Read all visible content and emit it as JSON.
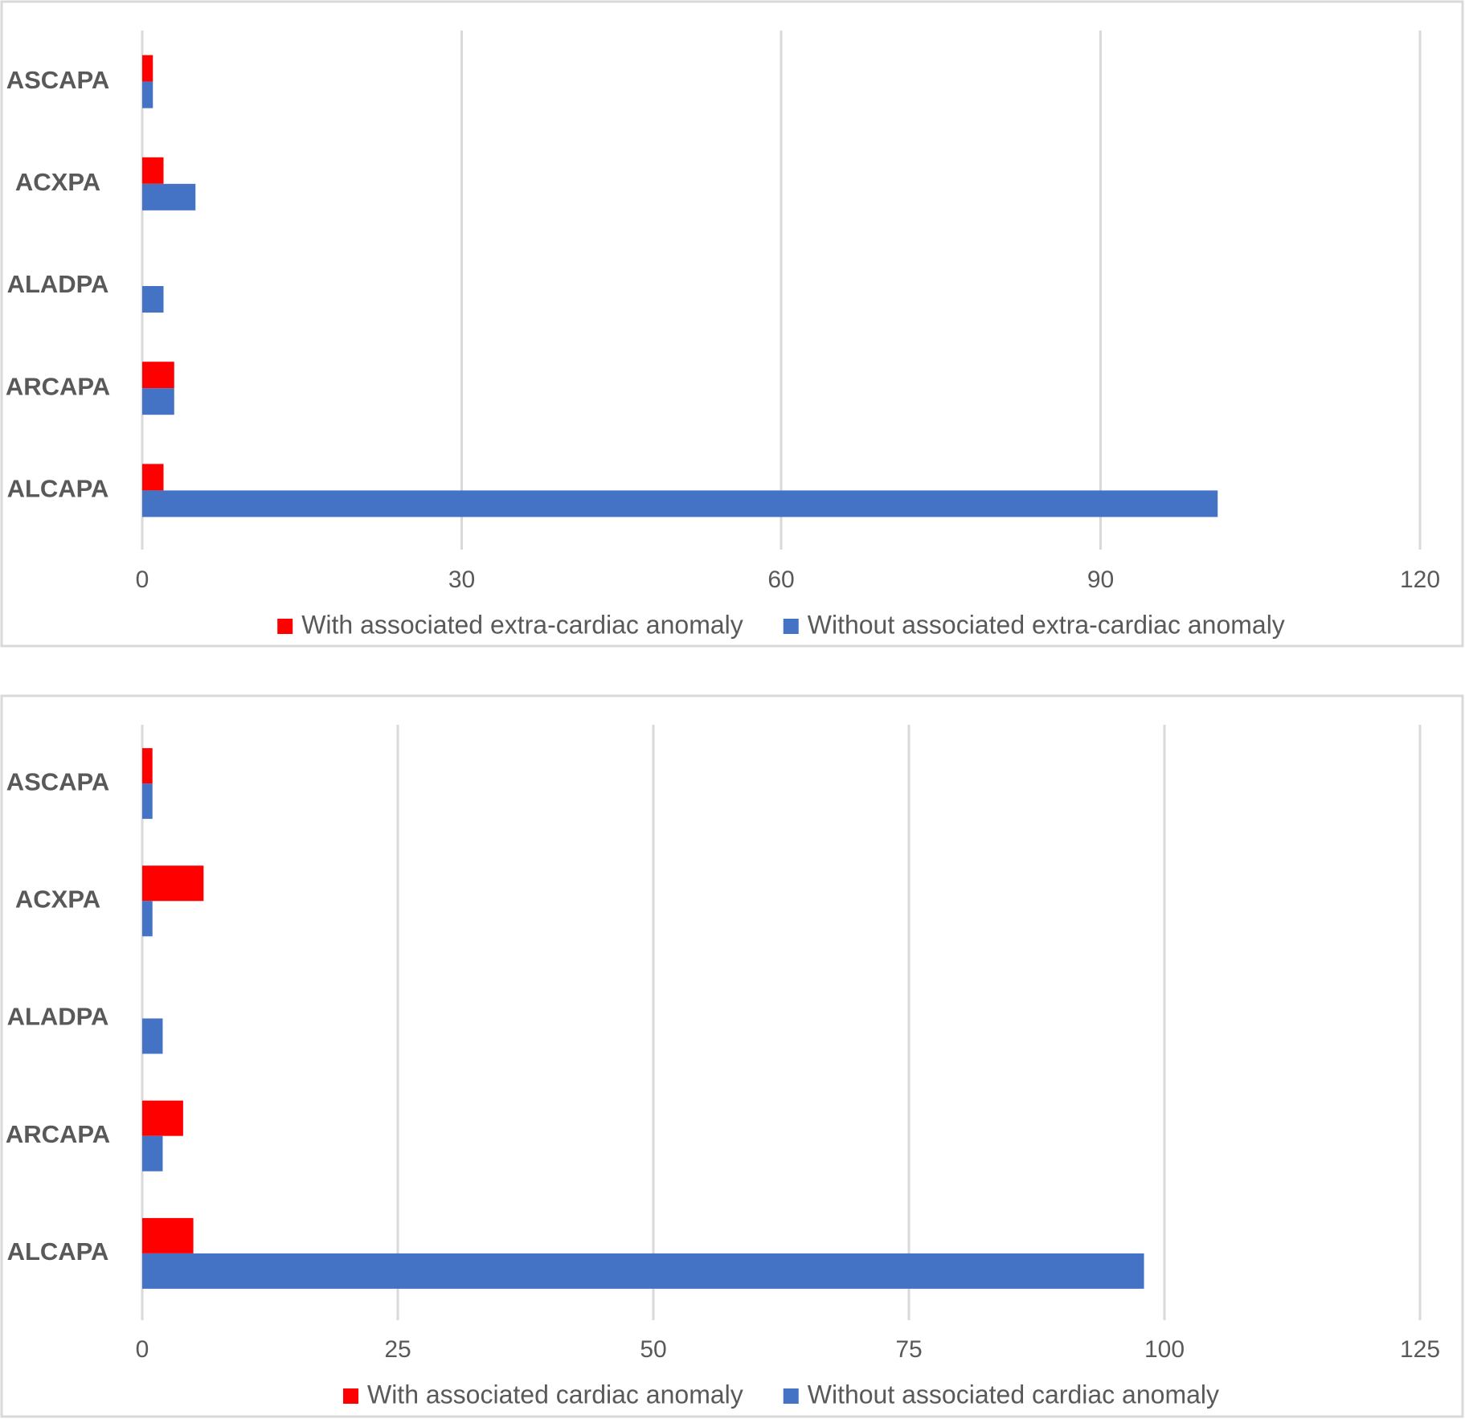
{
  "chart_data": [
    {
      "type": "bar",
      "orientation": "horizontal",
      "categories": [
        "ASCAPA",
        "ACXPA",
        "ALADPA",
        "ARCAPA",
        "ALCAPA"
      ],
      "series": [
        {
          "name": "With associated extra-cardiac anomaly",
          "color": "#ff0000",
          "values": [
            1,
            2,
            0,
            3,
            2
          ]
        },
        {
          "name": "Without associated extra-cardiac anomaly",
          "color": "#4472c4",
          "values": [
            1,
            5,
            2,
            3,
            101
          ]
        }
      ],
      "xlim": [
        0,
        120
      ],
      "xticks": [
        0,
        30,
        60,
        90,
        120
      ],
      "grid": true,
      "legend": "bottom"
    },
    {
      "type": "bar",
      "orientation": "horizontal",
      "categories": [
        "ASCAPA",
        "ACXPA",
        "ALADPA",
        "ARCAPA",
        "ALCAPA"
      ],
      "series": [
        {
          "name": "With associated cardiac anomaly",
          "color": "#ff0000",
          "values": [
            1,
            6,
            0,
            4,
            5
          ]
        },
        {
          "name": "Without associated cardiac anomaly",
          "color": "#4472c4",
          "values": [
            1,
            1,
            2,
            2,
            98
          ]
        }
      ],
      "xlim": [
        0,
        125
      ],
      "xticks": [
        0,
        25,
        50,
        75,
        100,
        125
      ],
      "grid": true,
      "legend": "bottom"
    }
  ]
}
